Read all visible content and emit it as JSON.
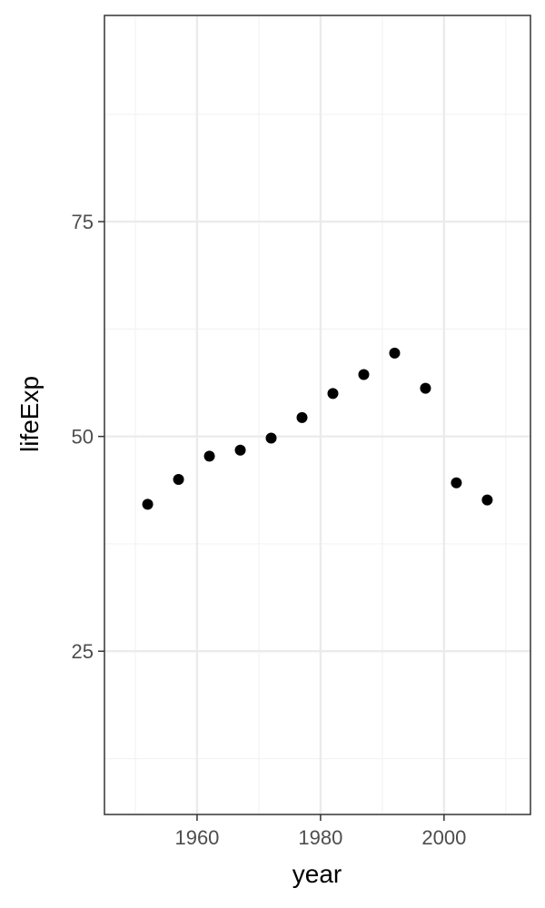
{
  "chart_data": {
    "type": "scatter",
    "xlabel": "year",
    "ylabel": "lifeExp",
    "xlim": [
      1945,
      2014
    ],
    "ylim": [
      6,
      99
    ],
    "x_ticks": [
      1960,
      1980,
      2000
    ],
    "x_minor_ticks": [
      1950,
      1970,
      1990,
      2010
    ],
    "y_ticks": [
      25,
      50,
      75
    ],
    "y_minor_ticks": [
      12.5,
      37.5,
      62.5,
      87.5
    ],
    "grid": true,
    "legend": "none",
    "points": [
      {
        "x": 1952,
        "y": 42.1
      },
      {
        "x": 1957,
        "y": 45.0
      },
      {
        "x": 1962,
        "y": 47.7
      },
      {
        "x": 1967,
        "y": 48.4
      },
      {
        "x": 1972,
        "y": 49.8
      },
      {
        "x": 1977,
        "y": 52.2
      },
      {
        "x": 1982,
        "y": 55.0
      },
      {
        "x": 1987,
        "y": 57.2
      },
      {
        "x": 1992,
        "y": 59.7
      },
      {
        "x": 1997,
        "y": 55.6
      },
      {
        "x": 2002,
        "y": 44.6
      },
      {
        "x": 2007,
        "y": 42.6
      }
    ],
    "colors": {
      "point": "#000000",
      "panel_border": "#333333",
      "grid_major": "#ebebeb",
      "grid_minor": "#f3f3f3",
      "tick_label": "#4d4d4d"
    }
  }
}
